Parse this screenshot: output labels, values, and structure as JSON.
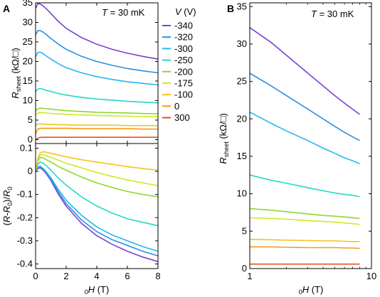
{
  "chart_data": [
    {
      "type": "line",
      "panel": "A",
      "annotation": "T = 30 mK",
      "xlabel": "",
      "ylabel": "R_sheet (kΩ/□)",
      "xlim": [
        0,
        8
      ],
      "ylim": [
        -1,
        35
      ],
      "x_ticks": [
        0,
        2,
        4,
        6,
        8
      ],
      "y_ticks": [
        0,
        5,
        10,
        15,
        20,
        25,
        30,
        35
      ],
      "legend_title": "V (V)",
      "legend_position": "right",
      "series": [
        {
          "name": "-340",
          "color": "#7b3fd6",
          "x": [
            0,
            0.15,
            0.3,
            0.5,
            0.7,
            1,
            1.5,
            2,
            3,
            4,
            5,
            6,
            7,
            8
          ],
          "y": [
            33.6,
            34.8,
            34.7,
            34.2,
            33.5,
            32.3,
            30.2,
            28.5,
            26.1,
            24.4,
            23.1,
            22.1,
            21.3,
            20.6
          ]
        },
        {
          "name": "-320",
          "color": "#2b8fe0",
          "x": [
            0,
            0.15,
            0.3,
            0.5,
            0.7,
            1,
            1.5,
            2,
            3,
            4,
            5,
            6,
            7,
            8
          ],
          "y": [
            26.8,
            27.9,
            27.9,
            27.5,
            26.9,
            25.9,
            24.4,
            23.1,
            21.3,
            20.0,
            19.0,
            18.2,
            17.6,
            17.1
          ]
        },
        {
          "name": "-300",
          "color": "#20b8ee",
          "x": [
            0,
            0.15,
            0.3,
            0.5,
            0.7,
            1,
            1.5,
            2,
            3,
            4,
            5,
            6,
            7,
            8
          ],
          "y": [
            21.2,
            22.3,
            22.4,
            22.0,
            21.4,
            20.6,
            19.4,
            18.4,
            17.1,
            16.1,
            15.4,
            14.8,
            14.4,
            14.0
          ]
        },
        {
          "name": "-250",
          "color": "#22d8c8",
          "x": [
            0,
            0.15,
            0.3,
            0.5,
            0.7,
            1,
            1.5,
            2,
            3,
            4,
            5,
            6,
            7,
            8
          ],
          "y": [
            12.3,
            12.9,
            13.1,
            12.9,
            12.6,
            12.3,
            11.8,
            11.4,
            10.8,
            10.4,
            10.1,
            9.8,
            9.6,
            9.4
          ]
        },
        {
          "name": "-200",
          "color": "#8ed82a",
          "x": [
            0,
            0.15,
            0.3,
            0.5,
            0.7,
            1,
            1.5,
            2,
            3,
            4,
            5,
            6,
            7,
            8
          ],
          "y": [
            7.3,
            7.9,
            8.1,
            8.0,
            7.9,
            7.8,
            7.6,
            7.4,
            7.2,
            7.0,
            6.9,
            6.8,
            6.7,
            6.6
          ]
        },
        {
          "name": "-175",
          "color": "#d2e829",
          "x": [
            0,
            0.15,
            0.3,
            0.5,
            0.7,
            1,
            1.5,
            2,
            3,
            4,
            5,
            6,
            7,
            8
          ],
          "y": [
            6.3,
            6.8,
            6.9,
            6.9,
            6.8,
            6.7,
            6.6,
            6.5,
            6.3,
            6.2,
            6.1,
            6.0,
            5.9,
            5.9
          ]
        },
        {
          "name": "-100",
          "color": "#f4c21c",
          "x": [
            0,
            0.15,
            0.3,
            0.5,
            0.7,
            1,
            1.5,
            2,
            3,
            4,
            5,
            6,
            7,
            8
          ],
          "y": [
            3.7,
            4.0,
            4.0,
            4.0,
            3.9,
            3.9,
            3.8,
            3.8,
            3.7,
            3.7,
            3.7,
            3.6,
            3.6,
            3.6
          ]
        },
        {
          "name": "0",
          "color": "#f39c12",
          "x": [
            0,
            0.15,
            0.3,
            0.5,
            0.7,
            1,
            1.5,
            2,
            3,
            4,
            5,
            6,
            7,
            8
          ],
          "y": [
            1.5,
            2.7,
            2.9,
            2.9,
            2.9,
            2.9,
            2.9,
            2.9,
            2.8,
            2.8,
            2.8,
            2.8,
            2.7,
            2.7
          ]
        },
        {
          "name": "300",
          "color": "#e8501e",
          "x": [
            0,
            0.2,
            0.4,
            1,
            2,
            3,
            4,
            5,
            6,
            7,
            8
          ],
          "y": [
            0.0,
            0.5,
            0.6,
            0.6,
            0.6,
            0.6,
            0.6,
            0.6,
            0.6,
            0.6,
            0.6
          ]
        }
      ]
    },
    {
      "type": "line",
      "panel": "A",
      "xlabel": "₀H (T)",
      "ylabel": "(R-R₀)/R₀",
      "xlim": [
        0,
        8
      ],
      "ylim": [
        -0.42,
        0.12
      ],
      "x_ticks": [
        0,
        2,
        4,
        6,
        8
      ],
      "y_ticks": [
        0.1,
        0,
        -0.1,
        -0.2,
        -0.3,
        -0.4
      ],
      "series": [
        {
          "name": "-340",
          "color": "#7b3fd6",
          "x": [
            0,
            0.15,
            0.3,
            0.5,
            0.7,
            1,
            1.5,
            2,
            3,
            4,
            5,
            6,
            7,
            8
          ],
          "y": [
            0,
            0.012,
            0.015,
            0.005,
            -0.01,
            -0.04,
            -0.1,
            -0.15,
            -0.225,
            -0.278,
            -0.315,
            -0.345,
            -0.37,
            -0.39
          ]
        },
        {
          "name": "-320",
          "color": "#2b8fe0",
          "x": [
            0,
            0.15,
            0.3,
            0.5,
            0.7,
            1,
            1.5,
            2,
            3,
            4,
            5,
            6,
            7,
            8
          ],
          "y": [
            0,
            0.015,
            0.02,
            0.01,
            -0.005,
            -0.035,
            -0.09,
            -0.14,
            -0.21,
            -0.26,
            -0.295,
            -0.32,
            -0.345,
            -0.365
          ]
        },
        {
          "name": "-300",
          "color": "#20b8ee",
          "x": [
            0,
            0.15,
            0.3,
            0.5,
            0.7,
            1,
            1.5,
            2,
            3,
            4,
            5,
            6,
            7,
            8
          ],
          "y": [
            0,
            0.018,
            0.022,
            0.012,
            -0.002,
            -0.028,
            -0.08,
            -0.125,
            -0.19,
            -0.24,
            -0.275,
            -0.3,
            -0.325,
            -0.345
          ]
        },
        {
          "name": "-250",
          "color": "#22d8c8",
          "x": [
            0,
            0.15,
            0.3,
            0.5,
            0.7,
            1,
            1.5,
            2,
            3,
            4,
            5,
            6,
            7,
            8
          ],
          "y": [
            0,
            0.03,
            0.04,
            0.035,
            0.025,
            0.005,
            -0.03,
            -0.06,
            -0.11,
            -0.15,
            -0.18,
            -0.205,
            -0.22,
            -0.235
          ]
        },
        {
          "name": "-200",
          "color": "#8ed82a",
          "x": [
            0,
            0.15,
            0.3,
            0.5,
            0.7,
            1,
            1.5,
            2,
            3,
            4,
            5,
            6,
            7,
            8
          ],
          "y": [
            0,
            0.045,
            0.06,
            0.058,
            0.05,
            0.04,
            0.02,
            0.005,
            -0.025,
            -0.05,
            -0.07,
            -0.087,
            -0.1,
            -0.11
          ]
        },
        {
          "name": "-175",
          "color": "#d2e829",
          "x": [
            0,
            0.15,
            0.3,
            0.5,
            0.7,
            1,
            1.5,
            2,
            3,
            4,
            5,
            6,
            7,
            8
          ],
          "y": [
            0,
            0.05,
            0.07,
            0.072,
            0.068,
            0.06,
            0.048,
            0.035,
            0.015,
            -0.005,
            -0.022,
            -0.037,
            -0.05,
            -0.062
          ]
        },
        {
          "name": "-100",
          "color": "#f4c21c",
          "x": [
            0,
            0.15,
            0.3,
            0.5,
            0.7,
            1,
            1.5,
            2,
            3,
            4,
            5,
            6,
            7,
            8
          ],
          "y": [
            0,
            0.055,
            0.08,
            0.085,
            0.082,
            0.078,
            0.07,
            0.063,
            0.05,
            0.04,
            0.03,
            0.02,
            0.012,
            0.005
          ]
        }
      ]
    },
    {
      "type": "line",
      "panel": "B",
      "annotation": "T = 30 mK",
      "xlabel": "₀H (T)",
      "ylabel": "R_sheet (kΩ/□)",
      "x_scale": "log",
      "xlim": [
        1,
        10
      ],
      "ylim": [
        0,
        35.5
      ],
      "x_ticks": [
        1,
        10
      ],
      "y_ticks": [
        0,
        5,
        10,
        15,
        20,
        25,
        30,
        35
      ],
      "series": [
        {
          "name": "-340",
          "color": "#7b3fd6",
          "x": [
            1,
            1.5,
            2,
            3,
            4,
            5,
            6,
            7,
            8
          ],
          "y": [
            32.2,
            30.2,
            28.5,
            26.1,
            24.4,
            23.1,
            22.1,
            21.3,
            20.6
          ]
        },
        {
          "name": "-320",
          "color": "#2b8fe0",
          "x": [
            1,
            1.5,
            2,
            3,
            4,
            5,
            6,
            7,
            8
          ],
          "y": [
            26.1,
            24.4,
            23.1,
            21.3,
            20.0,
            19.0,
            18.2,
            17.6,
            17.1
          ]
        },
        {
          "name": "-300",
          "color": "#20b8ee",
          "x": [
            1,
            1.5,
            2,
            3,
            4,
            5,
            6,
            7,
            8
          ],
          "y": [
            20.9,
            19.4,
            18.4,
            17.1,
            16.1,
            15.4,
            14.8,
            14.4,
            14.0
          ]
        },
        {
          "name": "-250",
          "color": "#22d8c8",
          "x": [
            1,
            1.5,
            2,
            3,
            4,
            5,
            6,
            7,
            8
          ],
          "y": [
            12.5,
            11.8,
            11.4,
            10.8,
            10.4,
            10.1,
            9.9,
            9.8,
            9.6
          ]
        },
        {
          "name": "-200",
          "color": "#8ed82a",
          "x": [
            1,
            1.5,
            2,
            3,
            4,
            5,
            6,
            7,
            8
          ],
          "y": [
            8.0,
            7.8,
            7.6,
            7.3,
            7.1,
            7.0,
            6.9,
            6.8,
            6.7
          ]
        },
        {
          "name": "-175",
          "color": "#d2e829",
          "x": [
            1,
            1.5,
            2,
            3,
            4,
            5,
            6,
            7,
            8
          ],
          "y": [
            6.8,
            6.7,
            6.6,
            6.4,
            6.3,
            6.2,
            6.1,
            6.0,
            5.9
          ]
        },
        {
          "name": "-100",
          "color": "#f4c21c",
          "x": [
            1,
            1.5,
            2,
            3,
            4,
            5,
            6,
            7,
            8
          ],
          "y": [
            3.9,
            3.85,
            3.8,
            3.75,
            3.7,
            3.7,
            3.65,
            3.6,
            3.6
          ]
        },
        {
          "name": "0",
          "color": "#f39c12",
          "x": [
            1,
            1.5,
            2,
            3,
            4,
            5,
            6,
            7,
            8
          ],
          "y": [
            2.9,
            2.9,
            2.85,
            2.8,
            2.8,
            2.8,
            2.75,
            2.75,
            2.7
          ]
        },
        {
          "name": "300",
          "color": "#e8501e",
          "x": [
            1,
            2,
            4,
            8
          ],
          "y": [
            0.6,
            0.6,
            0.6,
            0.6
          ]
        }
      ]
    }
  ],
  "labels": {
    "panel_a": "A",
    "panel_b": "B",
    "legend_title_var": "V",
    "legend_title_unit": " (V)",
    "temp_var": "T",
    "temp_value": " = 30 mK",
    "temp_var_b": "T",
    "temp_value_b": " = 30 mK",
    "rsheet_main": "R",
    "rsheet_sub": "sheet",
    "rsheet_unit": " (kΩ/□)",
    "rsheet_main_b": "R",
    "rsheet_sub_b": "sheet",
    "rsheet_unit_b": " (kΩ/□)",
    "mr_open": "(",
    "mr_r1": "R",
    "mr_dash": "-",
    "mr_r2": "R",
    "mr_sub1": "0",
    "mr_close": ")/",
    "mr_r3": "R",
    "mr_sub2": "0",
    "xaxis_sub": "0",
    "xaxis_h": "H",
    "xaxis_unit": " (T)",
    "xaxis_sub_b": "0",
    "xaxis_h_b": "H",
    "xaxis_unit_b": " (T)"
  }
}
